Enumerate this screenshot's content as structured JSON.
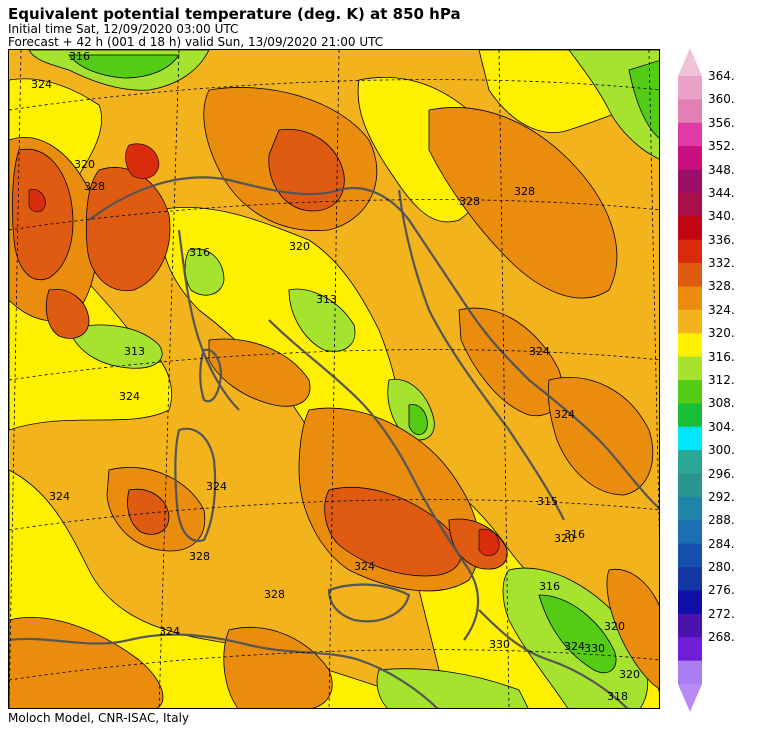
{
  "header": {
    "title": "Equivalent potential temperature (deg. K) at 850 hPa",
    "initial_time": "Initial time  Sat, 12/09/2020  03:00 UTC",
    "forecast": "Forecast  +  42 h  (001 d 18 h)  valid Sun, 13/09/2020 21:00 UTC"
  },
  "footer": {
    "credit": "Moloch Model, CNR-ISAC, Italy"
  },
  "legend": {
    "levels": [
      "364.",
      "360.",
      "356.",
      "352.",
      "348.",
      "344.",
      "340.",
      "336.",
      "332.",
      "328.",
      "324.",
      "320.",
      "316.",
      "312.",
      "308.",
      "304.",
      "300.",
      "296.",
      "292.",
      "288.",
      "284.",
      "280.",
      "276.",
      "272.",
      "268."
    ],
    "colors": [
      "#e9a3c9",
      "#e47fb6",
      "#e03aa9",
      "#c8107f",
      "#9b0f6b",
      "#a8104a",
      "#c20512",
      "#d92c0e",
      "#e05b12",
      "#ea8c0e",
      "#f2b31c",
      "#fff000",
      "#a5e32e",
      "#54cc16",
      "#17bf36",
      "#00e6ff",
      "#2aa795",
      "#28968f",
      "#1f85a8",
      "#1d6fb3",
      "#1650ad",
      "#1436a3",
      "#120fa8",
      "#4b12ad",
      "#6f1ed6",
      "#a97ef0"
    ],
    "top_arrow_color": "#efc2d8",
    "bottom_arrow_color": "#b98af5"
  },
  "map": {
    "contour_labels": [
      "316",
      "324",
      "320",
      "328",
      "316",
      "313",
      "313",
      "324",
      "324",
      "324",
      "328",
      "328",
      "324",
      "316",
      "320",
      "316",
      "324",
      "320",
      "318",
      "330",
      "328",
      "324",
      "315",
      "320",
      "328",
      "324",
      "330",
      "324",
      "320"
    ]
  }
}
